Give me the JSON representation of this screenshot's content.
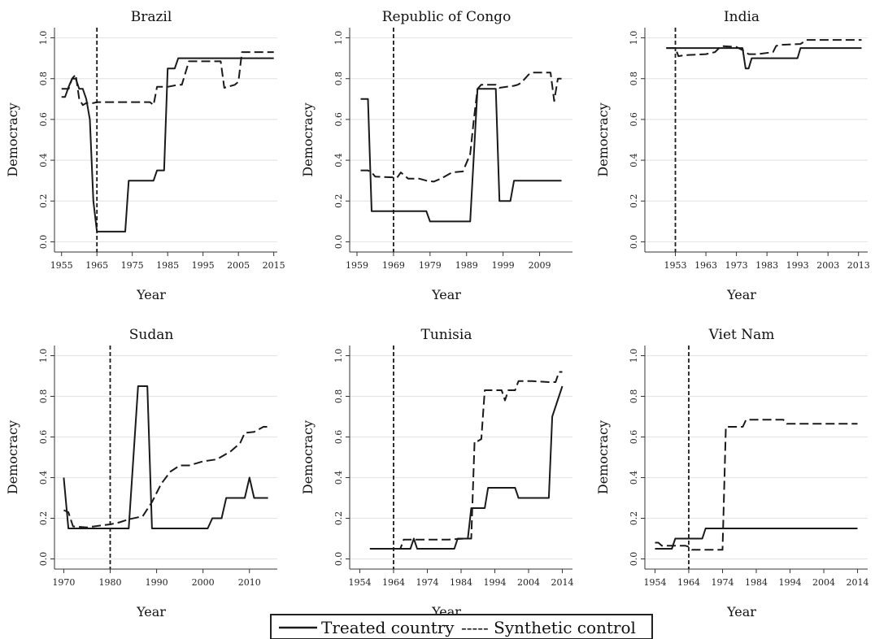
{
  "legend": {
    "treated_label": "Treated country",
    "synthetic_label": "----- Synthetic control"
  },
  "colors": {
    "line": "#1a1a1a",
    "grid": "#e6e6e6",
    "axis": "#333333"
  },
  "chart_data": [
    {
      "type": "line",
      "title": "Brazil",
      "xlabel": "Year",
      "ylabel": "Democracy",
      "xlim": [
        1953,
        2016
      ],
      "ylim": [
        -0.05,
        1.05
      ],
      "xticks": [
        1955,
        1965,
        1975,
        1985,
        1995,
        2005,
        2015
      ],
      "yticks": [
        0.0,
        0.2,
        0.4,
        0.6,
        0.8,
        1.0
      ],
      "ytick_labels": [
        "0.0",
        "0.2",
        "0.4",
        "0.6",
        "0.8",
        "1.0"
      ],
      "intervention_year": 1965,
      "grid": true,
      "series": [
        {
          "name": "Treated country",
          "style": "solid",
          "x": [
            1955,
            1956,
            1957,
            1958,
            1959,
            1960,
            1961,
            1962,
            1963,
            1964,
            1965,
            1973,
            1974,
            1981,
            1982,
            1984,
            1985,
            1987,
            1988,
            2015
          ],
          "y": [
            0.71,
            0.71,
            0.76,
            0.8,
            0.8,
            0.75,
            0.75,
            0.7,
            0.6,
            0.2,
            0.05,
            0.05,
            0.3,
            0.3,
            0.35,
            0.35,
            0.85,
            0.85,
            0.9,
            0.9
          ]
        },
        {
          "name": "Synthetic control",
          "style": "dash",
          "x": [
            1955,
            1957,
            1958,
            1959,
            1960,
            1961,
            1962,
            1964,
            1965,
            1980,
            1981,
            1982,
            1984,
            1985,
            1988,
            1989,
            1991,
            2000,
            2001,
            2004,
            2005,
            2006,
            2015
          ],
          "y": [
            0.75,
            0.75,
            0.8,
            0.82,
            0.7,
            0.67,
            0.68,
            0.68,
            0.685,
            0.685,
            0.67,
            0.76,
            0.76,
            0.76,
            0.77,
            0.77,
            0.885,
            0.885,
            0.755,
            0.77,
            0.785,
            0.93,
            0.93
          ]
        }
      ]
    },
    {
      "type": "line",
      "title": "Republic of Congo",
      "xlabel": "Year",
      "ylabel": "Democracy",
      "xlim": [
        1957,
        2018
      ],
      "ylim": [
        -0.05,
        1.05
      ],
      "xticks": [
        1959,
        1969,
        1979,
        1989,
        1999,
        2009
      ],
      "yticks": [
        0.0,
        0.2,
        0.4,
        0.6,
        0.8,
        1.0
      ],
      "ytick_labels": [
        "0.0",
        "0.2",
        "0.4",
        "0.6",
        "0.8",
        "1.0"
      ],
      "intervention_year": 1969,
      "grid": true,
      "series": [
        {
          "name": "Treated country",
          "style": "solid",
          "x": [
            1960,
            1962,
            1963,
            1978,
            1979,
            1990,
            1992,
            1993,
            1997,
            1998,
            2001,
            2002,
            2015
          ],
          "y": [
            0.7,
            0.7,
            0.15,
            0.15,
            0.1,
            0.1,
            0.75,
            0.75,
            0.75,
            0.2,
            0.2,
            0.3,
            0.3
          ]
        },
        {
          "name": "Synthetic control",
          "style": "dash",
          "x": [
            1960,
            1962,
            1963,
            1964,
            1970,
            1971,
            1973,
            1976,
            1978,
            1980,
            1982,
            1985,
            1988,
            1990,
            1991,
            1992,
            1993,
            1997,
            1998,
            2002,
            2003,
            2004,
            2006,
            2007,
            2012,
            2013,
            2014,
            2015
          ],
          "y": [
            0.35,
            0.35,
            0.34,
            0.32,
            0.315,
            0.34,
            0.31,
            0.31,
            0.3,
            0.295,
            0.31,
            0.34,
            0.345,
            0.43,
            0.6,
            0.75,
            0.77,
            0.77,
            0.755,
            0.765,
            0.77,
            0.78,
            0.82,
            0.83,
            0.83,
            0.69,
            0.8,
            0.8
          ]
        }
      ]
    },
    {
      "type": "line",
      "title": "India",
      "xlabel": "Year",
      "ylabel": "Democracy",
      "xlim": [
        1943,
        2016
      ],
      "ylim": [
        -0.05,
        1.05
      ],
      "xticks": [
        1953,
        1963,
        1973,
        1983,
        1993,
        2003,
        2013
      ],
      "yticks": [
        0.0,
        0.2,
        0.4,
        0.6,
        0.8,
        1.0
      ],
      "ytick_labels": [
        "0.0",
        "0.2",
        "0.4",
        "0.6",
        "0.8",
        "1.0"
      ],
      "intervention_year": 1953,
      "grid": true,
      "series": [
        {
          "name": "Treated country",
          "style": "solid",
          "x": [
            1950,
            1975,
            1976,
            1977,
            1978,
            1993,
            1994,
            2014
          ],
          "y": [
            0.95,
            0.95,
            0.85,
            0.85,
            0.9,
            0.9,
            0.95,
            0.95
          ]
        },
        {
          "name": "Synthetic control",
          "style": "dash",
          "x": [
            1950,
            1953,
            1954,
            1956,
            1963,
            1966,
            1968,
            1973,
            1975,
            1977,
            1980,
            1985,
            1986,
            1987,
            1994,
            1996,
            1997,
            2014
          ],
          "y": [
            0.95,
            0.95,
            0.91,
            0.915,
            0.92,
            0.93,
            0.96,
            0.955,
            0.94,
            0.92,
            0.92,
            0.93,
            0.96,
            0.965,
            0.97,
            0.99,
            0.99,
            0.99
          ]
        }
      ]
    },
    {
      "type": "line",
      "title": "Sudan",
      "xlabel": "Year",
      "ylabel": "Democracy",
      "xlim": [
        1968,
        2016
      ],
      "ylim": [
        -0.05,
        1.05
      ],
      "xticks": [
        1970,
        1980,
        1990,
        2000,
        2010
      ],
      "yticks": [
        0.0,
        0.2,
        0.4,
        0.6,
        0.8,
        1.0
      ],
      "ytick_labels": [
        "0.0",
        "0.2",
        "0.4",
        "0.6",
        "0.8",
        "1.0"
      ],
      "intervention_year": 1980,
      "grid": true,
      "series": [
        {
          "name": "Treated country",
          "style": "solid",
          "x": [
            1970,
            1971,
            1984,
            1986,
            1988,
            1989,
            2001,
            2002,
            2004,
            2005,
            2009,
            2010,
            2011,
            2014
          ],
          "y": [
            0.4,
            0.15,
            0.15,
            0.85,
            0.85,
            0.15,
            0.15,
            0.2,
            0.2,
            0.3,
            0.3,
            0.4,
            0.3,
            0.3
          ]
        },
        {
          "name": "Synthetic control",
          "style": "dash",
          "x": [
            1970,
            1971,
            1972,
            1975,
            1978,
            1980,
            1982,
            1984,
            1987,
            1989,
            1991,
            1993,
            1995,
            1997,
            2000,
            2003,
            2006,
            2008,
            2009,
            2011,
            2013,
            2014
          ],
          "y": [
            0.24,
            0.23,
            0.16,
            0.155,
            0.165,
            0.17,
            0.18,
            0.195,
            0.21,
            0.28,
            0.37,
            0.43,
            0.46,
            0.46,
            0.48,
            0.49,
            0.53,
            0.57,
            0.62,
            0.625,
            0.65,
            0.65
          ]
        }
      ]
    },
    {
      "type": "line",
      "title": "Tunisia",
      "xlabel": "Year",
      "ylabel": "Democracy",
      "xlim": [
        1951,
        2017
      ],
      "ylim": [
        -0.05,
        1.05
      ],
      "xticks": [
        1954,
        1964,
        1974,
        1984,
        1994,
        2004,
        2014
      ],
      "yticks": [
        0.0,
        0.2,
        0.4,
        0.6,
        0.8,
        1.0
      ],
      "ytick_labels": [
        "0.0",
        "0.2",
        "0.4",
        "0.6",
        "0.8",
        "1.0"
      ],
      "intervention_year": 1964,
      "grid": true,
      "series": [
        {
          "name": "Treated country",
          "style": "solid",
          "x": [
            1957,
            1969,
            1970,
            1971,
            1982,
            1983,
            1986,
            1987,
            1991,
            1992,
            2000,
            2001,
            2010,
            2011,
            2014
          ],
          "y": [
            0.05,
            0.05,
            0.1,
            0.05,
            0.05,
            0.1,
            0.1,
            0.25,
            0.25,
            0.35,
            0.35,
            0.3,
            0.3,
            0.7,
            0.85
          ]
        },
        {
          "name": "Synthetic control",
          "style": "dash",
          "x": [
            1957,
            1966,
            1967,
            1975,
            1980,
            1985,
            1987,
            1988,
            1989,
            1990,
            1991,
            1992,
            1996,
            1997,
            1998,
            2000,
            2001,
            2005,
            2010,
            2012,
            2013,
            2014
          ],
          "y": [
            0.05,
            0.05,
            0.095,
            0.095,
            0.095,
            0.1,
            0.1,
            0.58,
            0.58,
            0.59,
            0.83,
            0.83,
            0.83,
            0.78,
            0.83,
            0.83,
            0.875,
            0.875,
            0.87,
            0.87,
            0.92,
            0.92
          ]
        }
      ]
    },
    {
      "type": "line",
      "title": "Viet Nam",
      "xlabel": "Year",
      "ylabel": "Democracy",
      "xlim": [
        1951,
        2017
      ],
      "ylim": [
        -0.05,
        1.05
      ],
      "xticks": [
        1954,
        1964,
        1974,
        1984,
        1994,
        2004,
        2014
      ],
      "yticks": [
        0.0,
        0.2,
        0.4,
        0.6,
        0.8,
        1.0
      ],
      "ytick_labels": [
        "0.0",
        "0.2",
        "0.4",
        "0.6",
        "0.8",
        "1.0"
      ],
      "intervention_year": 1964,
      "grid": true,
      "series": [
        {
          "name": "Treated country",
          "style": "solid",
          "x": [
            1954,
            1959,
            1960,
            1968,
            1969,
            2014
          ],
          "y": [
            0.05,
            0.05,
            0.1,
            0.1,
            0.15,
            0.15
          ]
        },
        {
          "name": "Synthetic control",
          "style": "dash",
          "x": [
            1954,
            1955,
            1956,
            1959,
            1960,
            1963,
            1964,
            1965,
            1970,
            1971,
            1974,
            1975,
            1979,
            1980,
            1981,
            1992,
            1993,
            2014
          ],
          "y": [
            0.08,
            0.08,
            0.065,
            0.065,
            0.065,
            0.065,
            0.06,
            0.045,
            0.045,
            0.045,
            0.045,
            0.65,
            0.65,
            0.65,
            0.685,
            0.685,
            0.665,
            0.665
          ]
        }
      ]
    }
  ]
}
